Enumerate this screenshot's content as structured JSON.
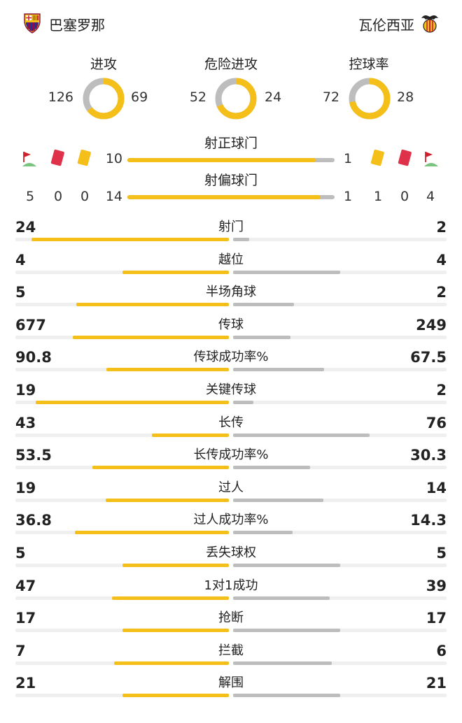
{
  "header": {
    "home_team": "巴塞罗那",
    "away_team": "瓦伦西亚",
    "home_logo_icon": "barcelona-crest-icon",
    "away_logo_icon": "valencia-bat-crest-icon"
  },
  "colors": {
    "home": "#f5bf1a",
    "away": "#bdbdbd",
    "track": "#efefef",
    "red_card": "#e0314b",
    "yellow_card": "#f5bf1a"
  },
  "rings": [
    {
      "title": "进攻",
      "home": "126",
      "away": "69",
      "home_value": 126,
      "away_value": 69
    },
    {
      "title": "危险进攻",
      "home": "52",
      "away": "24",
      "home_value": 52,
      "away_value": 24
    },
    {
      "title": "控球率",
      "home": "72",
      "away": "28",
      "home_value": 72,
      "away_value": 28
    }
  ],
  "shots": {
    "on_target": {
      "label": "射正球门",
      "home": "10",
      "away": "1",
      "home_value": 10,
      "away_value": 1
    },
    "off_target": {
      "label": "射偏球门",
      "home": "14",
      "away": "1",
      "home_value": 14,
      "away_value": 1
    }
  },
  "incidents": {
    "icons": [
      "corner-flag-icon",
      "red-card-icon",
      "yellow-card-icon"
    ],
    "home": {
      "corners": "5",
      "red": "0",
      "yellow": "0"
    },
    "away": {
      "yellow": "1",
      "red": "0",
      "corners": "4"
    }
  },
  "stats": [
    {
      "label": "射门",
      "home": "24",
      "away": "2",
      "home_value": 24,
      "away_value": 2
    },
    {
      "label": "越位",
      "home": "4",
      "away": "4",
      "home_value": 4,
      "away_value": 4
    },
    {
      "label": "半场角球",
      "home": "5",
      "away": "2",
      "home_value": 5,
      "away_value": 2
    },
    {
      "label": "传球",
      "home": "677",
      "away": "249",
      "home_value": 677,
      "away_value": 249
    },
    {
      "label": "传球成功率%",
      "home": "90.8",
      "away": "67.5",
      "home_value": 90.8,
      "away_value": 67.5
    },
    {
      "label": "关键传球",
      "home": "19",
      "away": "2",
      "home_value": 19,
      "away_value": 2
    },
    {
      "label": "长传",
      "home": "43",
      "away": "76",
      "home_value": 43,
      "away_value": 76
    },
    {
      "label": "长传成功率%",
      "home": "53.5",
      "away": "30.3",
      "home_value": 53.5,
      "away_value": 30.3
    },
    {
      "label": "过人",
      "home": "19",
      "away": "14",
      "home_value": 19,
      "away_value": 14
    },
    {
      "label": "过人成功率%",
      "home": "36.8",
      "away": "14.3",
      "home_value": 36.8,
      "away_value": 14.3
    },
    {
      "label": "丢失球权",
      "home": "5",
      "away": "5",
      "home_value": 5,
      "away_value": 5
    },
    {
      "label": "1对1成功",
      "home": "47",
      "away": "39",
      "home_value": 47,
      "away_value": 39
    },
    {
      "label": "抢断",
      "home": "17",
      "away": "17",
      "home_value": 17,
      "away_value": 17
    },
    {
      "label": "拦截",
      "home": "7",
      "away": "6",
      "home_value": 7,
      "away_value": 6
    },
    {
      "label": "解围",
      "home": "21",
      "away": "21",
      "home_value": 21,
      "away_value": 21
    }
  ]
}
